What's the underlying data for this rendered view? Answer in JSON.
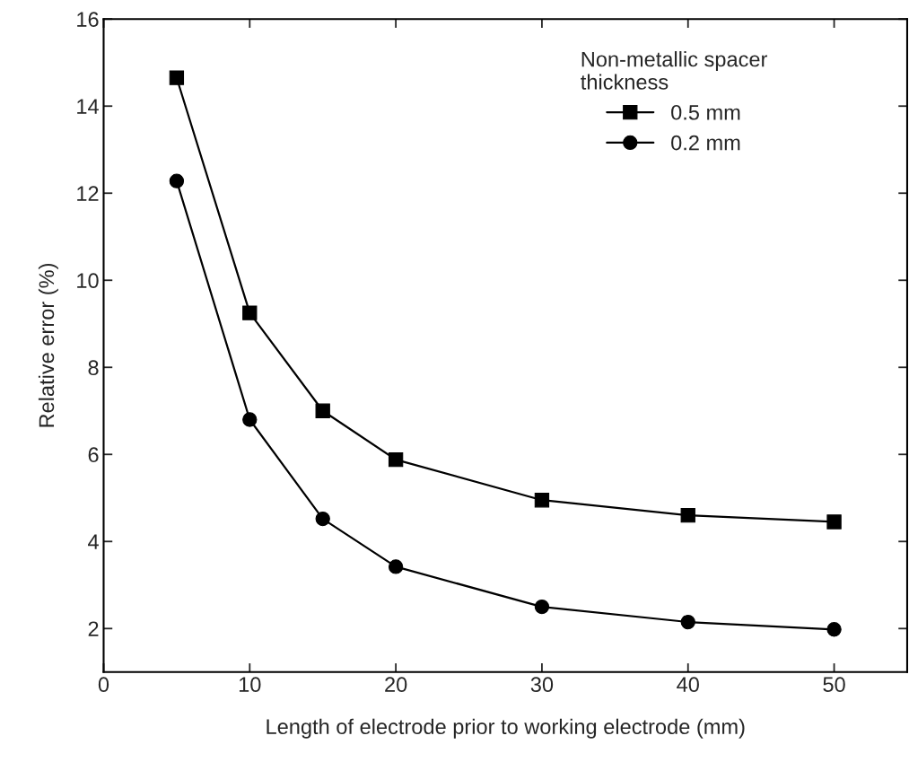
{
  "chart_data": {
    "type": "line",
    "xlabel": "Length of electrode prior to working electrode (mm)",
    "ylabel": "Relative error (%)",
    "legend_title": "Non-metallic spacer\nthickness",
    "legend": "top right",
    "grid": false,
    "line_style": "solid",
    "x": [
      5,
      10,
      15,
      20,
      30,
      40,
      50
    ],
    "xlim": [
      0,
      55
    ],
    "xticks": [
      0,
      10,
      20,
      30,
      40,
      50
    ],
    "ylim": [
      1,
      16
    ],
    "yticks": [
      2,
      4,
      6,
      8,
      10,
      12,
      14,
      16
    ],
    "series": [
      {
        "name": "0.5 mm",
        "color": "#000000",
        "marker": "square",
        "values": [
          14.65,
          9.25,
          7.0,
          5.88,
          4.95,
          4.6,
          4.45
        ]
      },
      {
        "name": "0.2 mm",
        "color": "#000000",
        "marker": "circle",
        "values": [
          12.28,
          6.8,
          4.52,
          3.42,
          2.5,
          2.15,
          1.98
        ]
      }
    ]
  }
}
